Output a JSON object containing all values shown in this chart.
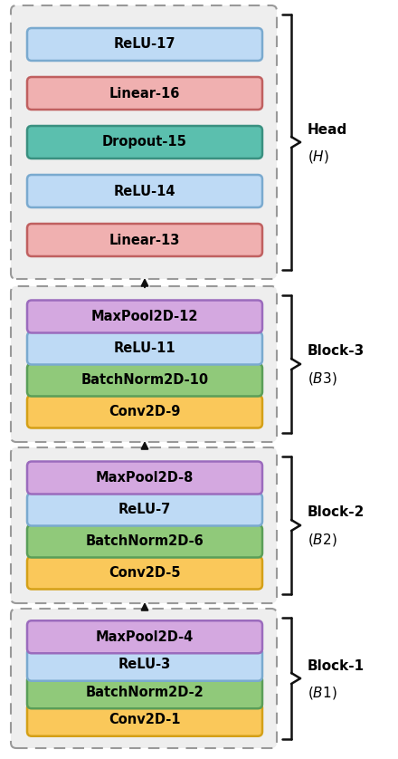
{
  "blocks": [
    {
      "name": "Block-1",
      "label": "$(B1)$",
      "layers": [
        {
          "text": "Conv2D-1",
          "facecolor": "#FAC85A",
          "edgecolor": "#D4A017"
        },
        {
          "text": "BatchNorm2D-2",
          "facecolor": "#90C97A",
          "edgecolor": "#5A9E58"
        },
        {
          "text": "ReLU-3",
          "facecolor": "#BEDAF5",
          "edgecolor": "#7AAACF"
        },
        {
          "text": "MaxPool2D-4",
          "facecolor": "#D4A8E0",
          "edgecolor": "#9B6BBD"
        }
      ]
    },
    {
      "name": "Block-2",
      "label": "$(B2)$",
      "layers": [
        {
          "text": "Conv2D-5",
          "facecolor": "#FAC85A",
          "edgecolor": "#D4A017"
        },
        {
          "text": "BatchNorm2D-6",
          "facecolor": "#90C97A",
          "edgecolor": "#5A9E58"
        },
        {
          "text": "ReLU-7",
          "facecolor": "#BEDAF5",
          "edgecolor": "#7AAACF"
        },
        {
          "text": "MaxPool2D-8",
          "facecolor": "#D4A8E0",
          "edgecolor": "#9B6BBD"
        }
      ]
    },
    {
      "name": "Block-3",
      "label": "$(B3)$",
      "layers": [
        {
          "text": "Conv2D-9",
          "facecolor": "#FAC85A",
          "edgecolor": "#D4A017"
        },
        {
          "text": "BatchNorm2D-10",
          "facecolor": "#90C97A",
          "edgecolor": "#5A9E58"
        },
        {
          "text": "ReLU-11",
          "facecolor": "#BEDAF5",
          "edgecolor": "#7AAACF"
        },
        {
          "text": "MaxPool2D-12",
          "facecolor": "#D4A8E0",
          "edgecolor": "#9B6BBD"
        }
      ]
    },
    {
      "name": "Head",
      "label": "$(H)$",
      "layers": [
        {
          "text": "Linear-13",
          "facecolor": "#F0B0B0",
          "edgecolor": "#C06060"
        },
        {
          "text": "ReLU-14",
          "facecolor": "#BEDAF5",
          "edgecolor": "#7AAACF"
        },
        {
          "text": "Dropout-15",
          "facecolor": "#5BBFAE",
          "edgecolor": "#3A9080"
        },
        {
          "text": "Linear-16",
          "facecolor": "#F0B0B0",
          "edgecolor": "#C06060"
        },
        {
          "text": "ReLU-17",
          "facecolor": "#BEDAF5",
          "edgecolor": "#7AAACF"
        }
      ]
    }
  ],
  "fig_bg": "#FFFFFF",
  "box_bg": "#EEEEEE",
  "box_edge": "#999999",
  "arrow_color": "#111111",
  "bracket_color": "#111111"
}
